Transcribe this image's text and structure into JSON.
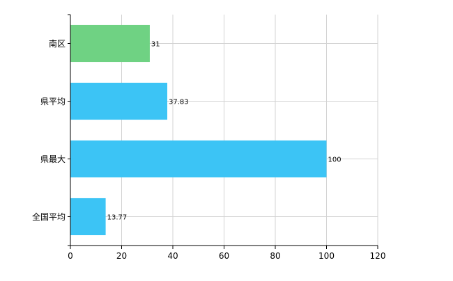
{
  "chart_data": {
    "type": "bar",
    "orientation": "horizontal",
    "title": "",
    "xlabel": "",
    "ylabel": "",
    "categories": [
      "南区",
      "県平均",
      "県最大",
      "全国平均"
    ],
    "values": [
      31,
      37.83,
      100,
      13.77
    ],
    "data_labels": [
      "31",
      "37.83",
      "100",
      "13.77"
    ],
    "bar_colors": [
      "#6fd283",
      "#3cc4f5",
      "#3cc4f5",
      "#3cc4f5"
    ],
    "xlim": [
      0,
      120
    ],
    "x_ticks": [
      0,
      20,
      40,
      60,
      80,
      100,
      120
    ],
    "x_tick_labels": [
      "0",
      "20",
      "40",
      "60",
      "80",
      "100",
      "120"
    ],
    "grid": true,
    "legend": "none"
  }
}
